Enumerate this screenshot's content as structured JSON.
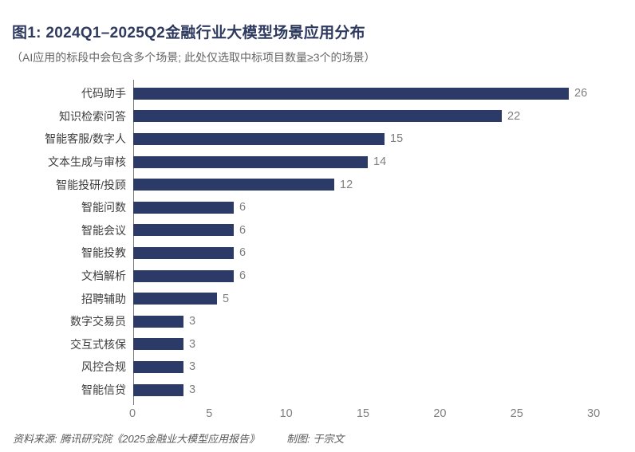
{
  "title": "图1: 2024Q1–2025Q2金融行业大模型场景应用分布",
  "subtitle": "（AI应用的标段中会包含多个场景; 此处仅选取中标项目数量≥3个的场景）",
  "chart_data": {
    "type": "bar",
    "orientation": "horizontal",
    "title": "图1: 2024Q1–2025Q2金融行业大模型场景应用分布",
    "categories": [
      "代码助手",
      "知识检索问答",
      "智能客服/数字人",
      "文本生成与审核",
      "智能投研/投顾",
      "智能问数",
      "智能会议",
      "智能投教",
      "文档解析",
      "招聘辅助",
      "数字交易员",
      "交互式核保",
      "风控合规",
      "智能信贷"
    ],
    "values": [
      26,
      22,
      15,
      14,
      12,
      6,
      6,
      6,
      6,
      5,
      3,
      3,
      3,
      3
    ],
    "xlabel": "",
    "ylabel": "",
    "xlim": [
      0,
      30
    ],
    "xticks": [
      0,
      5,
      10,
      15,
      20,
      25,
      30
    ],
    "grid": false,
    "legend": false,
    "value_labels_shown": true,
    "bar_color": "#2b3a67"
  },
  "footer": {
    "source": "资料来源: 腾讯研究院《2025金融业大模型应用报告》",
    "credit": "制图: 于宗文"
  },
  "colors": {
    "bar": "#2b3a67",
    "title": "#2f3a5f",
    "axis_line": "#7a7a7a",
    "category_label": "#3d3d3d",
    "value_label": "#7f7f7f",
    "tick_label": "#7f7f7f",
    "subtitle": "#666666",
    "footer": "#595959",
    "background": "#ffffff"
  }
}
